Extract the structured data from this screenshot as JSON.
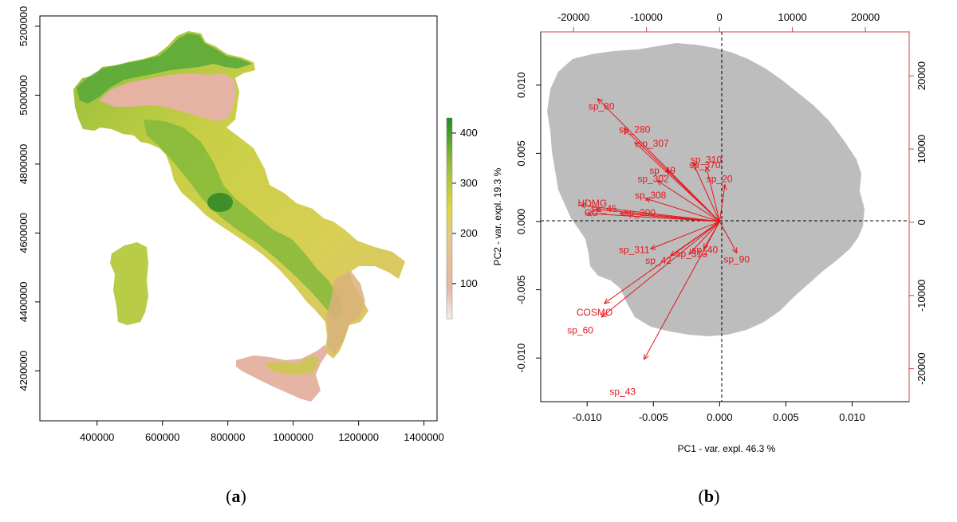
{
  "figure": {
    "panel_a_label": "a",
    "panel_b_label": "b"
  },
  "colors": {
    "map_low": "#ecc4b6",
    "map_mid": "#e4d245",
    "map_high": "#2d9a2a",
    "biplot_red": "#e8141a",
    "cloud_gray": "#bdbdbd"
  },
  "chart_data": [
    {
      "type": "heatmap",
      "title": "",
      "xlabel": "",
      "ylabel": "",
      "x_ticks": [
        400000,
        600000,
        800000,
        1000000,
        1200000,
        1400000
      ],
      "x_tick_labels": [
        "400000",
        "600000",
        "800000",
        "1000000",
        "1200000",
        "1400000"
      ],
      "y_ticks": [
        4200000,
        4400000,
        4600000,
        4800000,
        5000000,
        5200000
      ],
      "y_tick_labels": [
        "4200000",
        "4400000",
        "4600000",
        "4800000",
        "5000000",
        "5200000"
      ],
      "xlim": [
        225000,
        1440000
      ],
      "ylim": [
        4055000,
        5230000
      ],
      "colorbar": {
        "ticks": [
          100,
          200,
          300,
          400
        ],
        "tick_labels": [
          "100",
          "200",
          "300",
          "400"
        ],
        "range": [
          30,
          430
        ]
      }
    },
    {
      "type": "scatter",
      "subtype": "pca-biplot",
      "xlabel": "PC1 - var. expl. 46.3 %",
      "ylabel": "PC2 - var. expl. 19.3 %",
      "xlim": [
        -0.0135,
        0.0143
      ],
      "ylim": [
        -0.0132,
        0.0139
      ],
      "x_ticks": [
        -0.01,
        -0.005,
        0.0,
        0.005,
        0.01
      ],
      "x_tick_labels": [
        "-0.010",
        "-0.005",
        "0.000",
        "0.005",
        "0.010"
      ],
      "y_ticks": [
        -0.01,
        -0.005,
        0.0,
        0.005,
        0.01
      ],
      "y_tick_labels": [
        "-0.010",
        "-0.005",
        "0.000",
        "0.005",
        "0.010"
      ],
      "top_ticks": [
        -20000,
        -10000,
        0,
        10000,
        20000
      ],
      "top_tick_labels": [
        "-20000",
        "-10000",
        "0",
        "10000",
        "20000"
      ],
      "right_ticks": [
        -20000,
        -10000,
        0,
        10000,
        20000
      ],
      "right_tick_labels": [
        "-20000",
        "-10000",
        "0",
        "10000",
        "20000"
      ],
      "secondary_lim": [
        -24500,
        26000
      ],
      "vectors": [
        {
          "name": "sp_80",
          "x": -0.0092,
          "y": 0.009,
          "lx": -0.0099,
          "ly": 0.0082
        },
        {
          "name": "sp_280",
          "x": -0.0072,
          "y": 0.0068,
          "lx": -0.0076,
          "ly": 0.0065
        },
        {
          "name": "sp_307",
          "x": -0.0064,
          "y": 0.0058,
          "lx": -0.0062,
          "ly": 0.0055
        },
        {
          "name": "sp_310",
          "x": -0.002,
          "y": 0.0043,
          "lx": -0.0022,
          "ly": 0.0043
        },
        {
          "name": "sp_370",
          "x": -0.001,
          "y": 0.004,
          "lx": -0.0023,
          "ly": 0.0039
        },
        {
          "name": "sp_49",
          "x": -0.004,
          "y": 0.0038,
          "lx": -0.0053,
          "ly": 0.0035
        },
        {
          "name": "sp_302",
          "x": -0.0047,
          "y": 0.003,
          "lx": -0.0062,
          "ly": 0.0029
        },
        {
          "name": "sp_20",
          "x": 0.0004,
          "y": 0.0027,
          "lx": -0.001,
          "ly": 0.0029
        },
        {
          "name": "sp_308",
          "x": -0.0056,
          "y": 0.0017,
          "lx": -0.0064,
          "ly": 0.0017
        },
        {
          "name": "HDMG",
          "x": -0.0105,
          "y": 0.0012,
          "lx": -0.0107,
          "ly": 0.0011
        },
        {
          "name": "CC",
          "x": -0.01,
          "y": 0.0006,
          "lx": -0.0102,
          "ly": 0.0004
        },
        {
          "name": "sp_45",
          "x": -0.0093,
          "y": 0.0009,
          "lx": -0.0097,
          "ly": 0.0007
        },
        {
          "name": "sp_300",
          "x": -0.0075,
          "y": 0.0006,
          "lx": -0.0072,
          "ly": 0.0004
        },
        {
          "name": "sp_311",
          "x": -0.0052,
          "y": -0.002,
          "lx": -0.0076,
          "ly": -0.0023
        },
        {
          "name": "sp_42",
          "x": -0.0037,
          "y": -0.0025,
          "lx": -0.0056,
          "ly": -0.0031
        },
        {
          "name": "sp_313",
          "x": -0.0023,
          "y": -0.0024,
          "lx": -0.0033,
          "ly": -0.0026
        },
        {
          "name": "sp_40",
          "x": -0.0012,
          "y": -0.002,
          "lx": -0.0021,
          "ly": -0.0023
        },
        {
          "name": "sp_90",
          "x": 0.0013,
          "y": -0.0023,
          "lx": 0.0003,
          "ly": -0.003
        },
        {
          "name": "COSMO",
          "x": -0.0087,
          "y": -0.006,
          "lx": -0.0108,
          "ly": -0.0069
        },
        {
          "name": "sp_60",
          "x": -0.0089,
          "y": -0.007,
          "lx": -0.0115,
          "ly": -0.0082
        },
        {
          "name": "sp_43",
          "x": -0.0057,
          "y": -0.0101,
          "lx": -0.0083,
          "ly": -0.0127
        }
      ]
    }
  ]
}
